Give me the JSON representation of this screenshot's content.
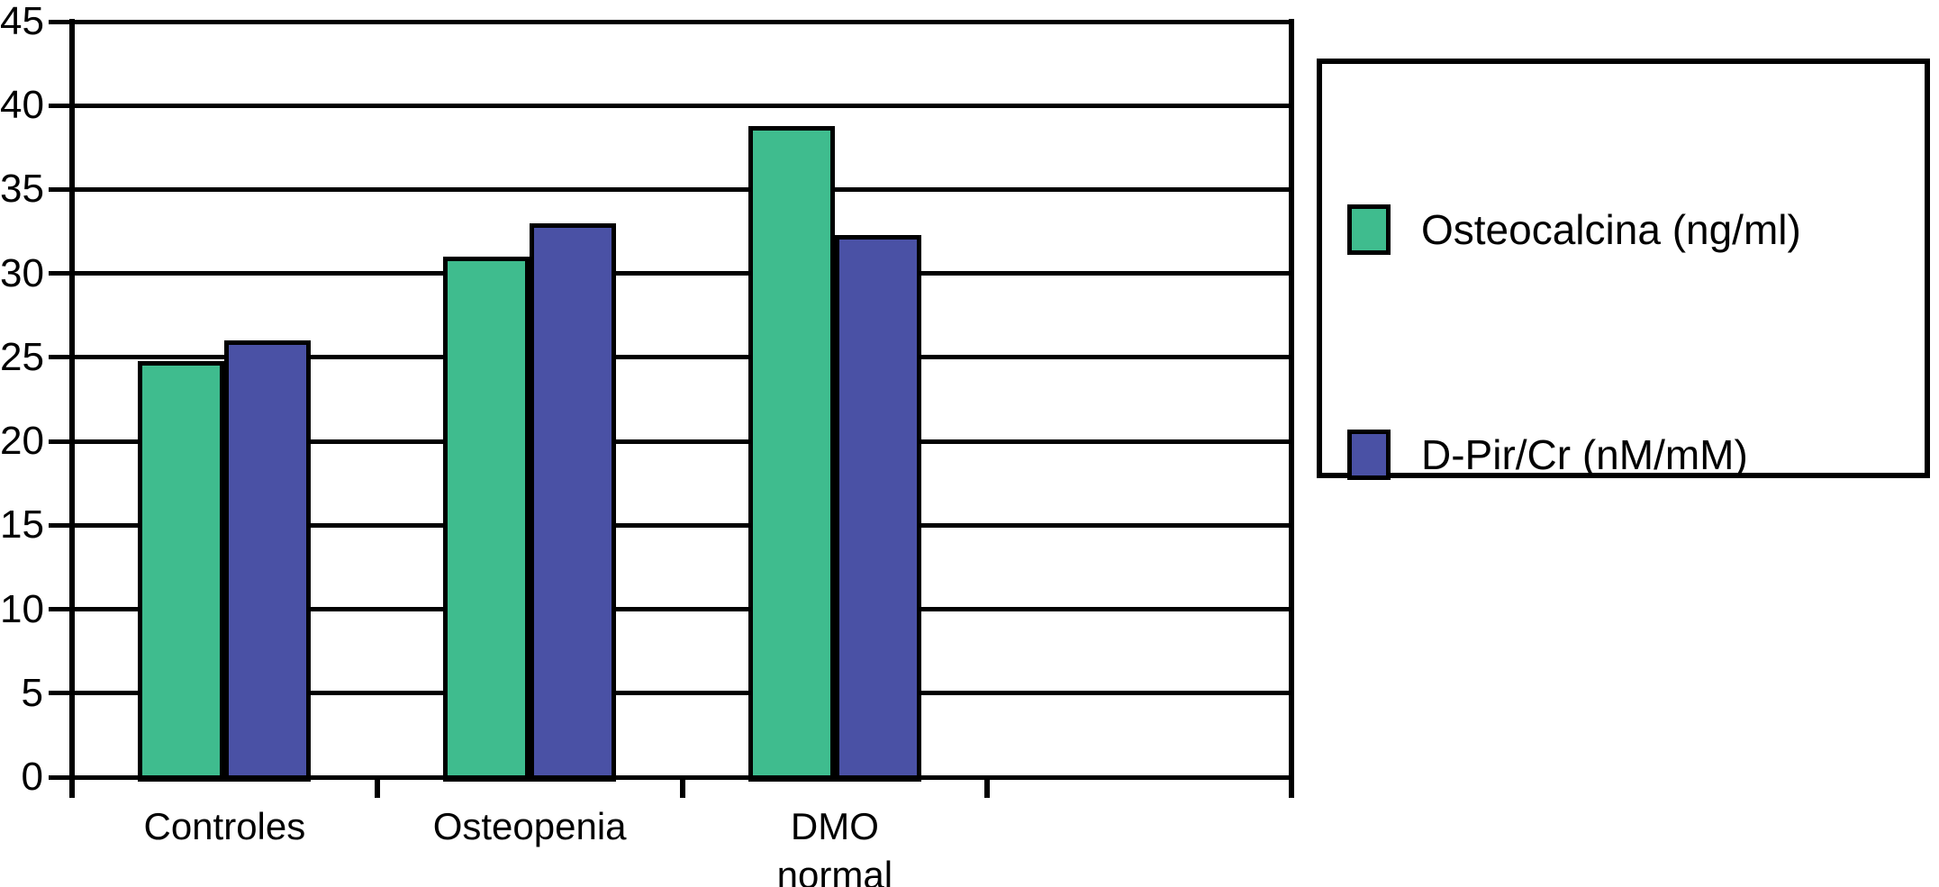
{
  "chart_data": {
    "type": "bar",
    "title": "",
    "xlabel": "",
    "ylabel": "",
    "categories": [
      "Controles",
      "Osteopenia",
      "DMO normal"
    ],
    "category_label_lines": [
      [
        "Controles"
      ],
      [
        "Osteopenia"
      ],
      [
        "DMO",
        "normal"
      ]
    ],
    "num_category_slots": 4,
    "series": [
      {
        "name": "Osteocalcina (ng/ml)",
        "color": "#3FBC8E",
        "values": [
          24.8,
          31.0,
          38.8
        ]
      },
      {
        "name": "D-Pir/Cr (nM/mM)",
        "color": "#4A51A5",
        "values": [
          26.0,
          33.0,
          32.3
        ]
      }
    ],
    "ylim": [
      0,
      45
    ],
    "yticks": [
      0,
      5,
      10,
      15,
      20,
      25,
      30,
      35,
      40,
      45
    ],
    "grid": "horizontal",
    "legend_position": "right",
    "axis_color": "#000000",
    "background_color": "#FFFFFF"
  }
}
